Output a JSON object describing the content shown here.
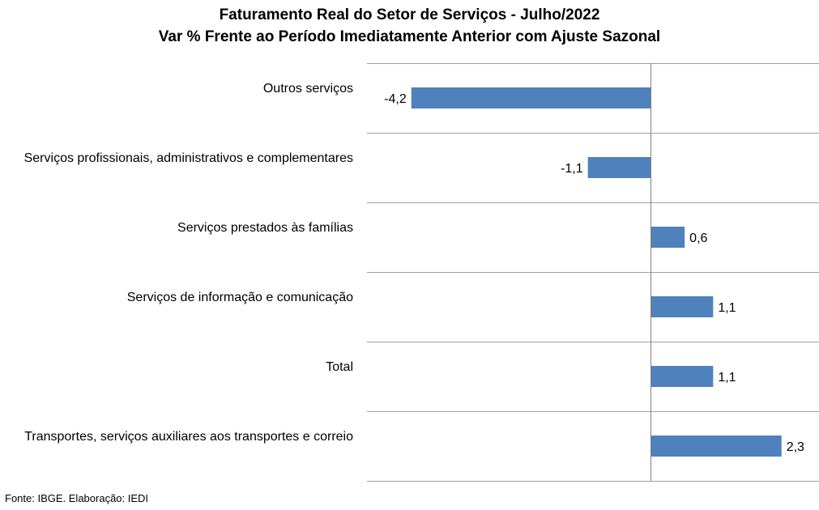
{
  "chart_data": {
    "type": "bar",
    "orientation": "horizontal",
    "title": "Faturamento Real do Setor de Serviços - Julho/2022",
    "subtitle": "Var % Frente ao Período Imediatamente Anterior com Ajuste Sazonal",
    "categories": [
      "Outros serviços",
      "Serviços profissionais, administrativos e complementares",
      "Serviços prestados às famílias",
      "Serviços de informação e comunicação",
      "Total",
      "Transportes, serviços auxiliares aos transportes e correio"
    ],
    "values": [
      -4.2,
      -1.1,
      0.6,
      1.1,
      1.1,
      2.3
    ],
    "data_labels": [
      "-4,2",
      "-1,1",
      "0,6",
      "1,1",
      "1,1",
      "2,3"
    ],
    "xlim": [
      -5,
      3
    ],
    "grid": "horizontal separators between categories",
    "bar_color": "#4F81BD"
  },
  "source": "Fonte: IBGE. Elaboração: IEDI"
}
